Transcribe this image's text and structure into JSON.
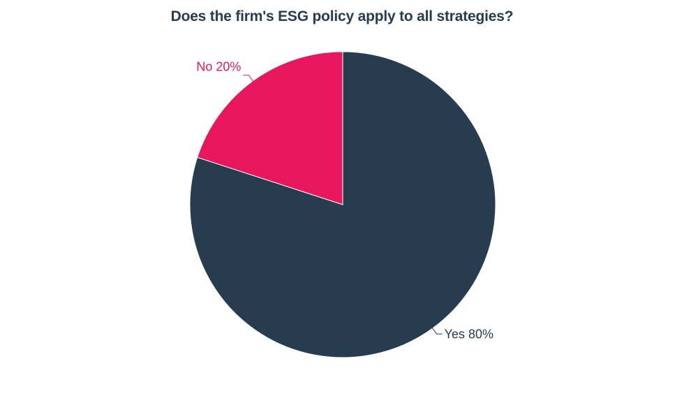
{
  "chart_data": {
    "type": "pie",
    "title": "Does the firm's ESG policy apply to all strategies?",
    "slices": [
      {
        "label": "Yes",
        "value": 80,
        "display": "Yes 80%",
        "color": "#283c50"
      },
      {
        "label": "No",
        "value": 20,
        "display": "No 20%",
        "color": "#e8175d"
      }
    ],
    "start_angle_deg": 0,
    "direction": "clockwise",
    "slice_border_color": "#ffffff",
    "legend": "none"
  }
}
